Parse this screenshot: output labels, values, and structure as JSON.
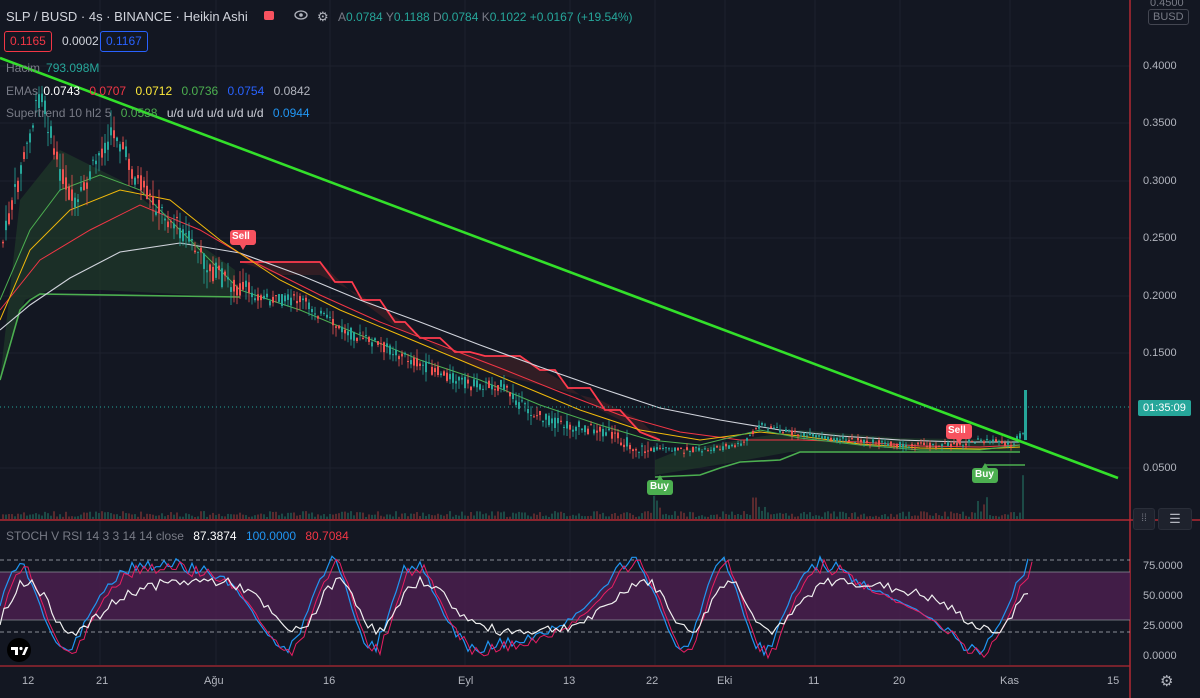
{
  "header": {
    "title": "SLP / BUSD · 4s · BINANCE · Heikin Ashi",
    "ohlc": [
      {
        "k": "A",
        "v": "0.0784"
      },
      {
        "k": "Y",
        "v": "0.1188"
      },
      {
        "k": "D",
        "v": "0.0784"
      },
      {
        "k": "K",
        "v": "0.1022"
      },
      {
        "k": "",
        "v": "+0.0167 (+19.54%)"
      }
    ],
    "sell_price": "0.1165",
    "spread": "0.0002",
    "buy_price": "0.1167",
    "currency": "BUSD"
  },
  "indicators": {
    "volume": {
      "label": "Hacim",
      "value": "793.098M"
    },
    "emas": {
      "label": "EMAs",
      "values": [
        {
          "v": "0.0743",
          "color": "#ffffff"
        },
        {
          "v": "0.0707",
          "color": "#f23645"
        },
        {
          "v": "0.0712",
          "color": "#ffeb3b"
        },
        {
          "v": "0.0736",
          "color": "#4caf50"
        },
        {
          "v": "0.0754",
          "color": "#2962ff"
        },
        {
          "v": "0.0842",
          "color": "#b2b5be"
        }
      ]
    },
    "supertrend": {
      "label": "Supertrend 10 hl2 5",
      "value": "0.0538",
      "extra": "u/d u/d u/d u/d u/d",
      "value2": "0.0944"
    }
  },
  "stoch": {
    "label": "STOCH V RSI 14 3 3 14 14 close",
    "v1": "87.3874",
    "v2": "100.0000",
    "v3": "80.7084"
  },
  "price_axis": {
    "labels": [
      "0.4000",
      "0.3500",
      "0.3000",
      "0.2500",
      "0.2000",
      "0.1500",
      "0.0500"
    ],
    "top_label": "0.4500",
    "countdown": "01:35:09"
  },
  "osc_axis": {
    "labels": [
      "75.0000",
      "50.0000",
      "25.0000",
      "0.0000"
    ]
  },
  "time_axis": {
    "labels": [
      "12",
      "21",
      "Ağu",
      "16",
      "Eyl",
      "13",
      "22",
      "Eki",
      "11",
      "20",
      "Kas",
      "15"
    ]
  },
  "signals": {
    "sell": "Sell",
    "buy": "Buy"
  },
  "colors": {
    "bg": "#131722",
    "up": "#26a69a",
    "down": "#ef5350",
    "trend": "#33e02a",
    "supertrend_red": "#ff3b4d",
    "supertrend_green": "#4caf50"
  }
}
